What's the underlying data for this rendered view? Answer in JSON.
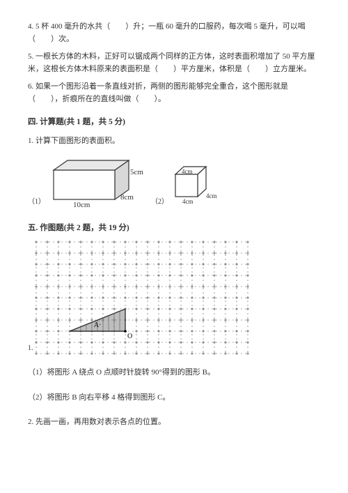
{
  "q4": "4. 5 杯 400 毫升的水共（　　）升；一瓶 60 毫升的口服药，每次喝 5 毫升，可以喝（　　）次。",
  "q5": "5. 一根长方体的木料，正好可以锯成两个同样的正方体，这时表面积增加了 50 平方厘米，这根长方体木料原来的表面积是（　　）平方厘米，体积是（　　）立方厘米。",
  "q6": "6. 如果一个图形沿着一条直线对折，两侧的图形能够完全重合，这个图形就是（　　），折痕所在的直线叫做（　　）。",
  "section4": {
    "title": "四. 计算题(共 1 题，共 5 分)",
    "q1": "1. 计算下面图形的表面积。",
    "fig1_label": "（1）",
    "fig2_label": "（2）",
    "cuboid": {
      "length": "10cm",
      "width": "8cm",
      "height": "5cm",
      "stroke": "#333333",
      "fill_front": "#ffffff",
      "fill_top": "#e8e8e8",
      "fill_side": "#d8d8d8"
    },
    "cube": {
      "side": "4cm",
      "stroke": "#333333"
    }
  },
  "section5": {
    "title": "五. 作图题(共 2 题，共 19 分)",
    "q1_label": "1.",
    "grid": {
      "cols": 19,
      "rows": 10,
      "cell": 16,
      "dash_color": "#555555",
      "triangle_fill": "#888888",
      "triangle_stroke": "#333333",
      "label_A": "A",
      "label_O": "O"
    },
    "sub1": "（1）将图形 A 绕点 O 点顺时针旋转 90°得到的图形 B。",
    "sub2": "（2）将图形 B 向右平移 4 格得到图形 C。",
    "q2": "2. 先画一画，再用数对表示各点的位置。"
  }
}
